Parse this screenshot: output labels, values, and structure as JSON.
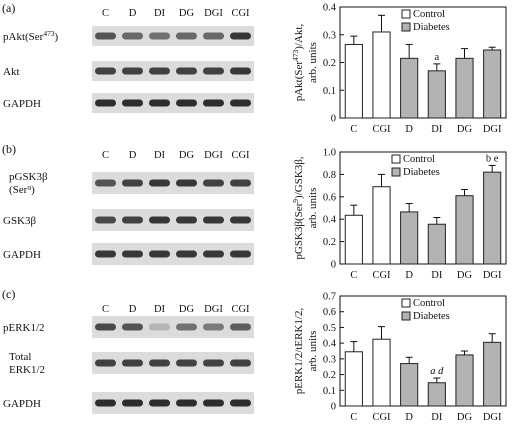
{
  "chart_data": [
    {
      "type": "bar",
      "panel": "(a)",
      "blot_lanes": [
        "C",
        "D",
        "DI",
        "DG",
        "DGI",
        "CGI"
      ],
      "blot_rows": [
        {
          "label": "pAkt(Ser",
          "sup": "473",
          "after": ")"
        },
        {
          "label": "Akt"
        },
        {
          "label": "GAPDH"
        }
      ],
      "categories": [
        "C",
        "CGI",
        "D",
        "DI",
        "DG",
        "DGI"
      ],
      "group": [
        "control",
        "control",
        "diabetes",
        "diabetes",
        "diabetes",
        "diabetes"
      ],
      "values": [
        0.265,
        0.31,
        0.215,
        0.17,
        0.215,
        0.245
      ],
      "errors": [
        0.03,
        0.06,
        0.05,
        0.025,
        0.035,
        0.01
      ],
      "annotations": [
        "",
        "",
        "",
        "a",
        "",
        ""
      ],
      "ylabel_lines": [
        {
          "pre": "pAkt(Ser",
          "sup": "473",
          "post": ")/Akt,"
        },
        {
          "pre": "arb. units",
          "sup": "",
          "post": ""
        }
      ],
      "ylim": [
        0,
        0.4
      ],
      "yticks": [
        "0",
        "0.1",
        "0.2",
        "0.3",
        "0.4"
      ],
      "legend": [
        "Control",
        "Diabetes"
      ],
      "legend_position": "top-right"
    },
    {
      "type": "bar",
      "panel": "(b)",
      "blot_lanes": [
        "C",
        "D",
        "DI",
        "DG",
        "DGI",
        "CGI"
      ],
      "blot_rows": [
        {
          "label": "pGSK3β",
          "line2": "(Ser⁹)"
        },
        {
          "label": "GSK3β"
        },
        {
          "label": "GAPDH"
        }
      ],
      "categories": [
        "C",
        "CGI",
        "D",
        "DI",
        "DG",
        "DGI"
      ],
      "group": [
        "control",
        "control",
        "diabetes",
        "diabetes",
        "diabetes",
        "diabetes"
      ],
      "values": [
        0.435,
        0.69,
        0.465,
        0.355,
        0.61,
        0.82
      ],
      "errors": [
        0.09,
        0.11,
        0.075,
        0.06,
        0.055,
        0.06
      ],
      "annotations": [
        "",
        "",
        "",
        "",
        "",
        "b e"
      ],
      "ylabel_lines": [
        {
          "pre": "pGSK3β(Ser",
          "sup": "9",
          "post": ")/GSK3β,"
        },
        {
          "pre": "arb. units",
          "sup": "",
          "post": ""
        }
      ],
      "ylim": [
        0,
        1.0
      ],
      "yticks": [
        "0",
        "0.2",
        "0.4",
        "0.6",
        "0.8",
        "1.0"
      ],
      "legend": [
        "Control",
        "Diabetes"
      ],
      "legend_position": "top-left"
    },
    {
      "type": "bar",
      "panel": "(c)",
      "blot_lanes": [
        "C",
        "D",
        "DI",
        "DG",
        "DGI",
        "CGI"
      ],
      "blot_rows": [
        {
          "label": "pERK1/2"
        },
        {
          "label": "Total",
          "line2": "ERK1/2"
        },
        {
          "label": "GAPDH"
        }
      ],
      "categories": [
        "C",
        "CGI",
        "D",
        "DI",
        "DG",
        "DGI"
      ],
      "group": [
        "control",
        "control",
        "diabetes",
        "diabetes",
        "diabetes",
        "diabetes"
      ],
      "values": [
        0.345,
        0.425,
        0.27,
        0.148,
        0.325,
        0.405
      ],
      "errors": [
        0.065,
        0.08,
        0.04,
        0.03,
        0.025,
        0.055
      ],
      "annotations": [
        "",
        "",
        "",
        "a d",
        "",
        ""
      ],
      "ylabel_lines": [
        {
          "pre": "pERK1/2/tERK1/2,",
          "sup": "",
          "post": ""
        },
        {
          "pre": "arb. units",
          "sup": "",
          "post": ""
        }
      ],
      "ylim": [
        0,
        0.7
      ],
      "yticks": [
        "0",
        "0.1",
        "0.2",
        "0.3",
        "0.4",
        "0.5",
        "0.6",
        "0.7"
      ],
      "legend": [
        "Control",
        "Diabetes"
      ],
      "legend_position": "top-right"
    }
  ],
  "colors": {
    "control_fill": "#ffffff",
    "diabetes_fill": "#b3b3b3",
    "bar_stroke": "#222222",
    "blot_bg": "#dcdcdc",
    "band": "#1a1a1a"
  }
}
